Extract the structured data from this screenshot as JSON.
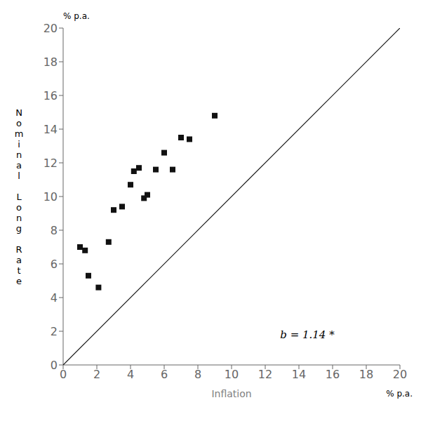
{
  "chart_data": {
    "type": "scatter",
    "xlabel": "Inflation",
    "ylabel": "Nominal Long Rate",
    "annotations": [
      "% p.a.",
      "% p.a.",
      "b = 1.14 *"
    ],
    "xlim": [
      0,
      20
    ],
    "ylim": [
      0,
      20
    ],
    "xticks": [
      0,
      2,
      4,
      6,
      8,
      10,
      12,
      14,
      16,
      18,
      20
    ],
    "yticks": [
      0,
      2,
      4,
      6,
      8,
      10,
      12,
      14,
      16,
      18,
      20
    ],
    "grid": false,
    "series": [
      {
        "type": "scatter",
        "marker": "square",
        "color": "#111111",
        "x": [
          1.0,
          1.3,
          1.5,
          2.1,
          2.7,
          3.0,
          3.5,
          4.0,
          4.2,
          4.5,
          4.8,
          5.0,
          5.5,
          6.0,
          6.5,
          7.0,
          7.5,
          9.0
        ],
        "values": [
          7.0,
          6.8,
          5.3,
          4.6,
          7.3,
          9.2,
          9.4,
          10.7,
          11.5,
          11.7,
          9.9,
          10.1,
          11.6,
          12.6,
          11.6,
          13.5,
          13.4,
          14.8
        ]
      },
      {
        "type": "line",
        "line_style": "solid",
        "color": "#111111",
        "x": [
          0,
          20
        ],
        "values": [
          0,
          20
        ]
      }
    ]
  }
}
